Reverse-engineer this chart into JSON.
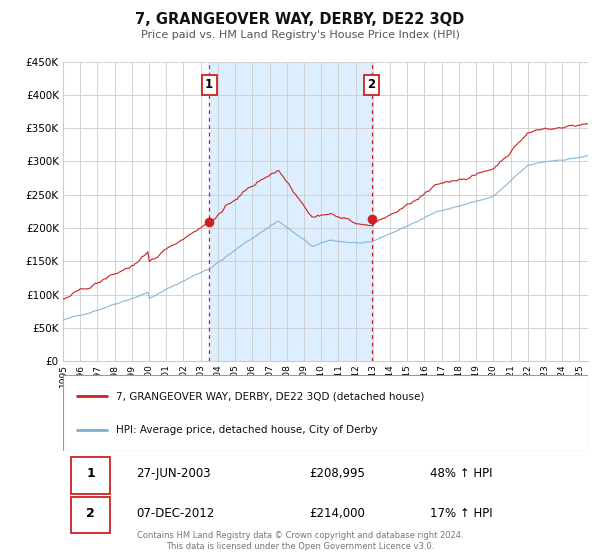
{
  "title": "7, GRANGEOVER WAY, DERBY, DE22 3QD",
  "subtitle": "Price paid vs. HM Land Registry's House Price Index (HPI)",
  "ylim": [
    0,
    450000
  ],
  "yticks": [
    0,
    50000,
    100000,
    150000,
    200000,
    250000,
    300000,
    350000,
    400000,
    450000
  ],
  "xlim_start": 1995.0,
  "xlim_end": 2025.5,
  "sale1_date": 2003.49,
  "sale1_price": 208995,
  "sale2_date": 2012.93,
  "sale2_price": 214000,
  "red_color": "#cc2222",
  "blue_color": "#7aafd4",
  "shade_color": "#ddeeff",
  "grid_color": "#cccccc",
  "background_color": "#ffffff",
  "legend1": "7, GRANGEOVER WAY, DERBY, DE22 3QD (detached house)",
  "legend2": "HPI: Average price, detached house, City of Derby",
  "footer1": "Contains HM Land Registry data © Crown copyright and database right 2024.",
  "footer2": "This data is licensed under the Open Government Licence v3.0.",
  "table_row1_label": "1",
  "table_row1_date": "27-JUN-2003",
  "table_row1_price": "£208,995",
  "table_row1_hpi": "48% ↑ HPI",
  "table_row2_label": "2",
  "table_row2_date": "07-DEC-2012",
  "table_row2_price": "£214,000",
  "table_row2_hpi": "17% ↑ HPI"
}
